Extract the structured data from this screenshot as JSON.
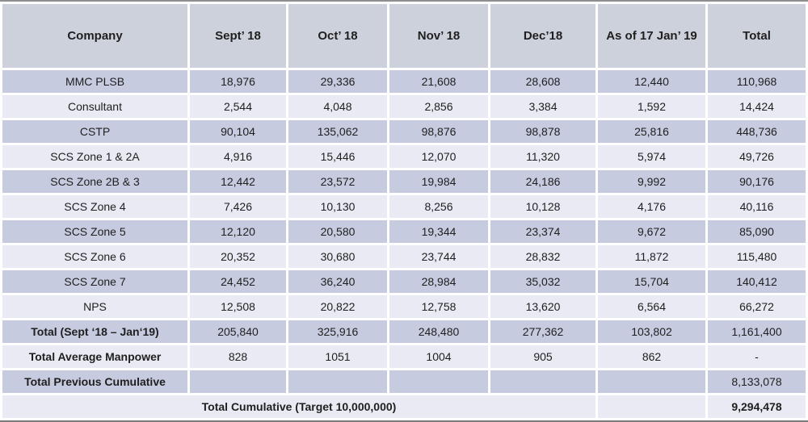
{
  "table": {
    "columns": [
      "Company",
      "Sept’ 18",
      "Oct’ 18",
      "Nov’ 18",
      "Dec’18",
      "As of 17 Jan’ 19",
      "Total"
    ],
    "rows": [
      {
        "label": "MMC PLSB",
        "values": [
          "18,976",
          "29,336",
          "21,608",
          "28,608",
          "12,440",
          "110,968"
        ]
      },
      {
        "label": "Consultant",
        "values": [
          "2,544",
          "4,048",
          "2,856",
          "3,384",
          "1,592",
          "14,424"
        ]
      },
      {
        "label": "CSTP",
        "values": [
          "90,104",
          "135,062",
          "98,876",
          "98,878",
          "25,816",
          "448,736"
        ]
      },
      {
        "label": "SCS Zone 1 & 2A",
        "values": [
          "4,916",
          "15,446",
          "12,070",
          "11,320",
          "5,974",
          "49,726"
        ]
      },
      {
        "label": "SCS Zone 2B & 3",
        "values": [
          "12,442",
          "23,572",
          "19,984",
          "24,186",
          "9,992",
          "90,176"
        ]
      },
      {
        "label": "SCS Zone 4",
        "values": [
          "7,426",
          "10,130",
          "8,256",
          "10,128",
          "4,176",
          "40,116"
        ]
      },
      {
        "label": "SCS Zone 5",
        "values": [
          "12,120",
          "20,580",
          "19,344",
          "23,374",
          "9,672",
          "85,090"
        ]
      },
      {
        "label": "SCS Zone 6",
        "values": [
          "20,352",
          "30,680",
          "23,744",
          "28,832",
          "11,872",
          "115,480"
        ]
      },
      {
        "label": "SCS Zone 7",
        "values": [
          "24,452",
          "36,240",
          "28,984",
          "35,032",
          "15,704",
          "140,412"
        ]
      },
      {
        "label": "NPS",
        "values": [
          "12,508",
          "20,822",
          "12,758",
          "13,620",
          "6,564",
          "66,272"
        ]
      },
      {
        "label": "Total (Sept ‘18 – Jan‘19)",
        "values": [
          "205,840",
          "325,916",
          "248,480",
          "277,362",
          "103,802",
          "1,161,400"
        ],
        "label_bold": true
      },
      {
        "label": "Total Average Manpower",
        "values": [
          "828",
          "1051",
          "1004",
          "905",
          "862",
          "-"
        ],
        "label_bold": true
      },
      {
        "label": "Total Previous Cumulative",
        "values": [
          "",
          "",
          "",
          "",
          "",
          "8,133,078"
        ],
        "label_bold": true
      },
      {
        "label": "Total Cumulative (Target 10,000,000)",
        "values": [
          "",
          "9,294,478"
        ],
        "label_bold": true,
        "label_colspan": 5,
        "total_bold": true
      }
    ]
  },
  "colors": {
    "header_bg": "#cdd1db",
    "row_dark_bg": "#c6cbdf",
    "row_light_bg": "#e9eaf3",
    "gap": "#ffffff",
    "outer_border": "#8e8e8e",
    "text": "#1f1f1f"
  }
}
